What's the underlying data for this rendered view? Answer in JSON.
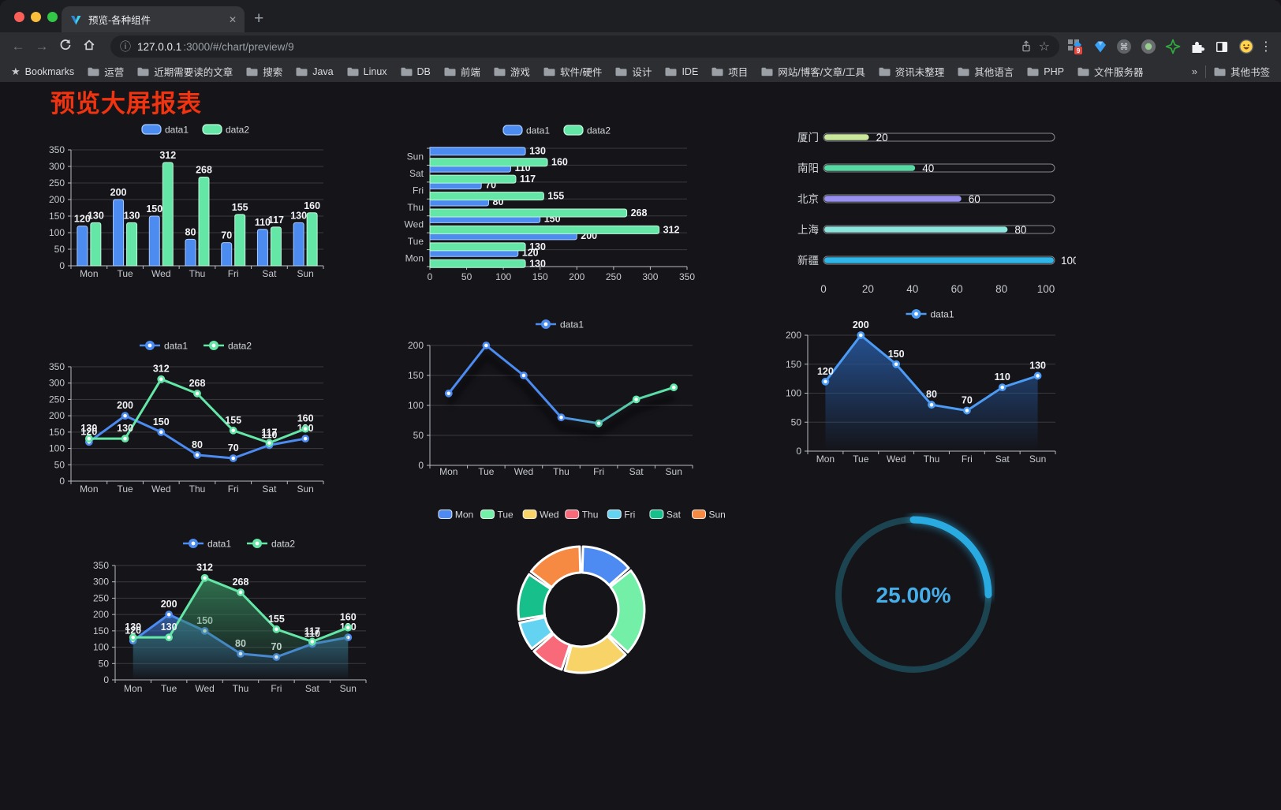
{
  "browser": {
    "tab_title": "预览-各种组件",
    "url_host": "127.0.0.1",
    "url_path": ":3000/#/chart/preview/9",
    "bookmarks_label": "Bookmarks",
    "bookmarks": [
      "运营",
      "近期需要读的文章",
      "搜索",
      "Java",
      "Linux",
      "DB",
      "前端",
      "游戏",
      "软件/硬件",
      "设计",
      "IDE",
      "项目",
      "网站/博客/文章/工具",
      "资讯未整理",
      "其他语言",
      "PHP",
      "文件服务器"
    ],
    "bookmarks_overflow": "»",
    "other_bookmarks": "其他书签",
    "extensions": [
      {
        "name": "grid-apps-icon",
        "badge": "9"
      },
      {
        "name": "gem-icon"
      },
      {
        "name": "command-icon"
      },
      {
        "name": "record-icon"
      },
      {
        "name": "green-star-icon"
      },
      {
        "name": "puzzle-icon"
      },
      {
        "name": "reader-mode-icon"
      },
      {
        "name": "emoji-icon"
      }
    ]
  },
  "page": {
    "title": "预览大屏报表"
  },
  "chart_data": [
    {
      "id": "bar-vertical",
      "type": "bar",
      "categories": [
        "Mon",
        "Tue",
        "Wed",
        "Thu",
        "Fri",
        "Sat",
        "Sun"
      ],
      "series": [
        {
          "name": "data1",
          "color": "#4C8BF0",
          "border": "#A9CBFF",
          "values": [
            120,
            200,
            150,
            80,
            70,
            110,
            130
          ]
        },
        {
          "name": "data2",
          "color": "#63E6A6",
          "border": "#C2F7DB",
          "values": [
            130,
            130,
            312,
            268,
            155,
            117,
            160
          ]
        }
      ],
      "ylim": [
        0,
        350
      ],
      "ystep": 50,
      "legend": [
        "data1",
        "data2"
      ],
      "grid": true,
      "labels": true
    },
    {
      "id": "bar-horizontal",
      "type": "bar",
      "categories": [
        "Mon",
        "Tue",
        "Wed",
        "Thu",
        "Fri",
        "Sat",
        "Sun"
      ],
      "series": [
        {
          "name": "data1",
          "color": "#4C8BF0",
          "border": "#A9CBFF",
          "values": [
            120,
            200,
            150,
            80,
            70,
            110,
            130
          ]
        },
        {
          "name": "data2",
          "color": "#63E6A6",
          "border": "#C2F7DB",
          "values": [
            130,
            130,
            312,
            268,
            155,
            117,
            160
          ]
        }
      ],
      "xlim": [
        0,
        350
      ],
      "xstep": 50,
      "legend": [
        "data1",
        "data2"
      ],
      "labels": true
    },
    {
      "id": "progress-bars",
      "type": "bar",
      "items": [
        {
          "label": "厦门",
          "value": 20,
          "color": "#C9E89B"
        },
        {
          "label": "南阳",
          "value": 40,
          "color": "#57D9A3"
        },
        {
          "label": "北京",
          "value": 60,
          "color": "#988FF0"
        },
        {
          "label": "上海",
          "value": 80,
          "color": "#8BE5DC"
        },
        {
          "label": "新疆",
          "value": 100,
          "color": "#2FB6E8"
        }
      ],
      "xlim": [
        0,
        100
      ],
      "xticks": [
        0,
        20,
        40,
        60,
        80,
        100
      ]
    },
    {
      "id": "line-two-series",
      "type": "line",
      "categories": [
        "Mon",
        "Tue",
        "Wed",
        "Thu",
        "Fri",
        "Sat",
        "Sun"
      ],
      "series": [
        {
          "name": "data1",
          "color": "#4C8BF0",
          "values": [
            120,
            200,
            150,
            80,
            70,
            110,
            130
          ]
        },
        {
          "name": "data2",
          "color": "#63E6A6",
          "values": [
            130,
            130,
            312,
            268,
            155,
            117,
            160
          ]
        }
      ],
      "ylim": [
        0,
        350
      ],
      "ystep": 50,
      "legend": [
        "data1",
        "data2"
      ],
      "labels": true
    },
    {
      "id": "line-gradient",
      "type": "line",
      "categories": [
        "Mon",
        "Tue",
        "Wed",
        "Thu",
        "Fri",
        "Sat",
        "Sun"
      ],
      "series": [
        {
          "name": "data1",
          "color": "#4C8BF0",
          "color2": "#5FE8A8",
          "values": [
            120,
            200,
            150,
            80,
            70,
            110,
            130
          ]
        }
      ],
      "ylim": [
        0,
        200
      ],
      "ystep": 50,
      "legend": [
        "data1"
      ],
      "labels": false,
      "gradient": true,
      "shadow": true
    },
    {
      "id": "line-area-single",
      "type": "area",
      "categories": [
        "Mon",
        "Tue",
        "Wed",
        "Thu",
        "Fri",
        "Sat",
        "Sun"
      ],
      "series": [
        {
          "name": "data1",
          "color": "#4C9BF5",
          "area_top": "rgba(38,84,150,0.95)",
          "area_bottom": "rgba(38,84,150,0)",
          "values": [
            120,
            200,
            150,
            80,
            70,
            110,
            130
          ]
        }
      ],
      "ylim": [
        0,
        200
      ],
      "ystep": 50,
      "legend": [
        "data1"
      ],
      "labels": true
    },
    {
      "id": "line-area-two",
      "type": "area",
      "categories": [
        "Mon",
        "Tue",
        "Wed",
        "Thu",
        "Fri",
        "Sat",
        "Sun"
      ],
      "series": [
        {
          "name": "data1",
          "color": "#4C8BF0",
          "area_top": "rgba(54,104,178,0.85)",
          "area_bottom": "rgba(54,104,178,0)",
          "values": [
            120,
            200,
            150,
            80,
            70,
            110,
            130
          ]
        },
        {
          "name": "data2",
          "color": "#63E6A6",
          "area_top": "rgba(52,128,88,0.85)",
          "area_bottom": "rgba(52,128,88,0)",
          "values": [
            130,
            130,
            312,
            268,
            155,
            117,
            160
          ]
        }
      ],
      "ylim": [
        0,
        350
      ],
      "ystep": 50,
      "legend": [
        "data1",
        "data2"
      ],
      "labels": true
    },
    {
      "id": "donut",
      "type": "pie",
      "categories": [
        "Mon",
        "Tue",
        "Wed",
        "Thu",
        "Fri",
        "Sat",
        "Sun"
      ],
      "values": [
        120,
        200,
        150,
        80,
        70,
        110,
        130
      ],
      "colors": [
        "#4D8AF2",
        "#74EFA8",
        "#F7D368",
        "#F8697A",
        "#64D3F2",
        "#17C08A",
        "#F78A43"
      ],
      "legend_position": "top"
    },
    {
      "id": "gauge",
      "type": "gauge",
      "value": 25,
      "display": "25.00%",
      "color": "#29ABE2",
      "track_color": "#1C4450",
      "text_color": "#46AFEA"
    }
  ]
}
